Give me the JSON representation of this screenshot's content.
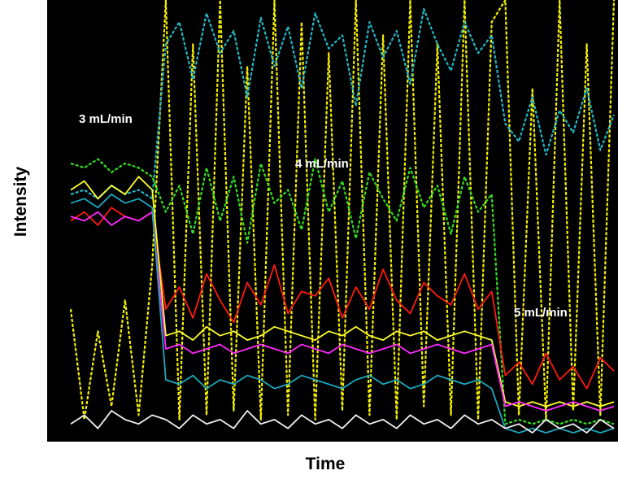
{
  "chart_data": {
    "type": "line",
    "xlabel": "Time",
    "ylabel": "Intensity",
    "annotations": [
      "3 mL/min",
      "4 mL/min",
      "5 mL/min"
    ],
    "xlim": [
      0,
      100
    ],
    "ylim": [
      0,
      100
    ],
    "background": "#000000",
    "x": [
      0,
      2.5,
      5,
      7.5,
      10,
      12.5,
      15,
      17.5,
      20,
      22.5,
      25,
      27.5,
      30,
      32.5,
      35,
      37.5,
      40,
      42.5,
      45,
      47.5,
      50,
      52.5,
      55,
      57.5,
      60,
      62.5,
      65,
      67.5,
      70,
      72.5,
      75,
      77.5,
      80,
      82.5,
      85,
      87.5,
      90,
      92.5,
      95,
      97.5,
      100
    ],
    "series": [
      {
        "color": "#f5f000",
        "dashed": true,
        "values": [
          30,
          5,
          25,
          8,
          32,
          6,
          40,
          100,
          5,
          90,
          6,
          100,
          7,
          85,
          5,
          100,
          6,
          95,
          5,
          88,
          7,
          100,
          6,
          92,
          5,
          100,
          8,
          90,
          6,
          100,
          5,
          95,
          100,
          6,
          80,
          5,
          100,
          7,
          90,
          6,
          100
        ]
      },
      {
        "color": "#22b8c8",
        "dashed": true,
        "values": [
          56,
          57,
          55,
          58,
          56,
          57,
          55,
          90,
          95,
          82,
          97,
          88,
          93,
          78,
          96,
          85,
          94,
          80,
          97,
          89,
          92,
          76,
          95,
          87,
          93,
          81,
          98,
          90,
          84,
          95,
          88,
          92,
          72,
          68,
          78,
          65,
          75,
          70,
          80,
          66,
          74
        ]
      },
      {
        "color": "#33dd22",
        "dashed": true,
        "values": [
          63,
          62,
          64,
          61,
          63,
          62,
          60,
          52,
          58,
          47,
          62,
          50,
          60,
          45,
          63,
          54,
          57,
          48,
          64,
          52,
          59,
          46,
          61,
          55,
          50,
          62,
          53,
          58,
          47,
          60,
          52,
          56,
          4,
          5,
          4,
          5,
          4,
          5,
          4,
          5,
          4
        ]
      },
      {
        "color": "#ff1a10",
        "dashed": false,
        "values": [
          50,
          52,
          49,
          53,
          51,
          50,
          52,
          30,
          35,
          28,
          38,
          32,
          27,
          36,
          31,
          40,
          29,
          34,
          33,
          37,
          28,
          35,
          30,
          39,
          32,
          29,
          36,
          33,
          31,
          38,
          30,
          34,
          15,
          18,
          13,
          20,
          14,
          17,
          12,
          19,
          16
        ]
      },
      {
        "color": "#ffff30",
        "dashed": false,
        "values": [
          57,
          59,
          55,
          58,
          56,
          60,
          57,
          24,
          25,
          23,
          26,
          24,
          25,
          23,
          24,
          26,
          25,
          24,
          23,
          25,
          24,
          26,
          24,
          23,
          25,
          24,
          25,
          23,
          24,
          25,
          24,
          23,
          9,
          8,
          9,
          8,
          9,
          8,
          9,
          8,
          9
        ]
      },
      {
        "color": "#ff2aff",
        "dashed": false,
        "values": [
          51,
          50,
          52,
          49,
          51,
          50,
          52,
          21,
          22,
          20,
          21,
          22,
          20,
          21,
          22,
          21,
          20,
          22,
          21,
          20,
          22,
          21,
          20,
          21,
          22,
          20,
          21,
          22,
          21,
          20,
          21,
          22,
          8,
          9,
          8,
          7,
          8,
          9,
          8,
          7,
          8
        ]
      },
      {
        "color": "#1aa8c0",
        "dashed": false,
        "values": [
          54,
          55,
          53,
          56,
          54,
          55,
          53,
          14,
          13,
          15,
          12,
          14,
          13,
          15,
          14,
          12,
          13,
          15,
          14,
          13,
          12,
          14,
          15,
          13,
          14,
          12,
          13,
          15,
          14,
          13,
          14,
          12,
          3,
          2,
          3,
          2,
          3,
          2,
          3,
          2,
          3
        ]
      },
      {
        "color": "#f0f0f0",
        "dashed": false,
        "values": [
          4,
          6,
          3,
          7,
          5,
          4,
          6,
          5,
          3,
          6,
          4,
          5,
          3,
          7,
          4,
          5,
          3,
          6,
          4,
          5,
          3,
          6,
          4,
          5,
          3,
          6,
          4,
          5,
          3,
          6,
          4,
          5,
          3,
          4,
          2,
          5,
          3,
          4,
          2,
          5,
          3
        ]
      }
    ]
  }
}
